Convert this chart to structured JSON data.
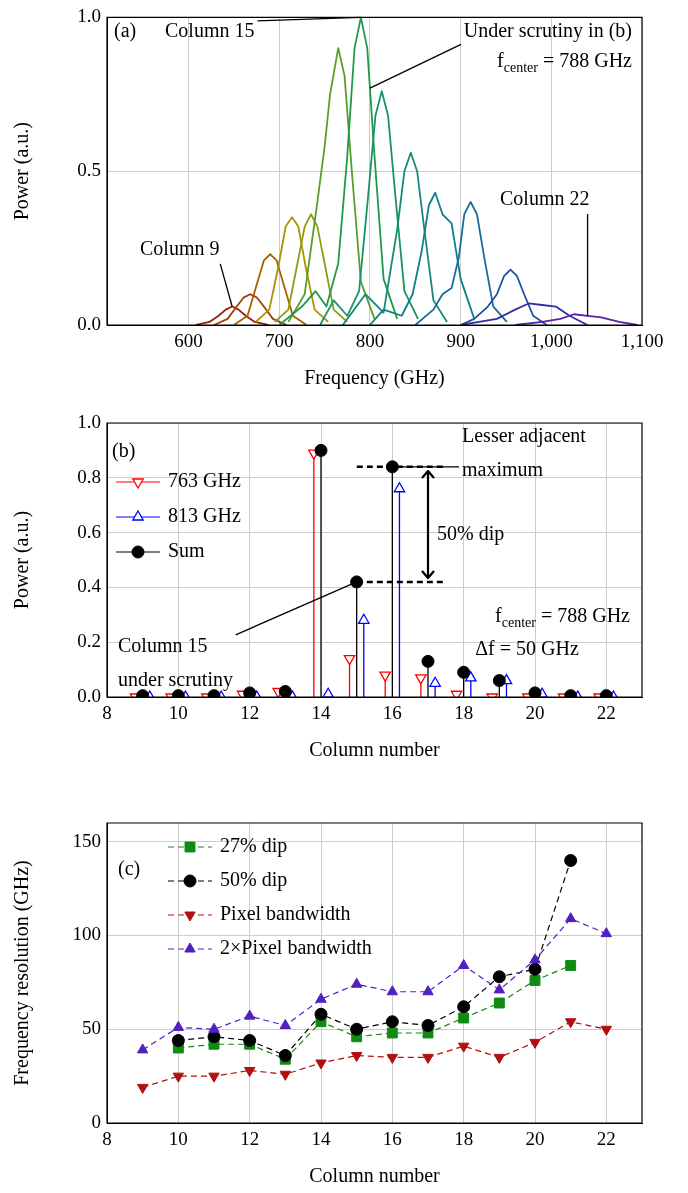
{
  "chart_data": [
    {
      "type": "line",
      "xlabel": "Frequency (GHz)",
      "ylabel": "Power (a.u.)",
      "xlim": [
        510,
        1100
      ],
      "ylim": [
        0,
        1
      ],
      "xticks": [
        600,
        700,
        800,
        900,
        {
          "value": 1000,
          "label": "1,000"
        },
        {
          "value": 1100,
          "label": "1,100"
        }
      ],
      "yticks": [
        {
          "value": 0,
          "label": "0.0"
        },
        {
          "value": 0.5,
          "label": "0.5"
        },
        {
          "value": 1,
          "label": "1.0"
        }
      ],
      "grid": true,
      "marker": "none",
      "legend": false,
      "annotations": [
        "(a)",
        {
          "text": "Column 15",
          "x": 790,
          "y": 1
        },
        {
          "text": "Under scrutiny in (b)",
          "x": 800,
          "y": 0.77
        },
        "f$_{center}$ = 788 GHz",
        {
          "text": "Column 22",
          "x": 1040,
          "y": 0.03
        },
        {
          "text": "Column 9",
          "x": 648,
          "y": 0.06
        }
      ],
      "series": [
        {
          "color": "#a01c0a",
          "x": [
            608,
            623,
            633,
            641,
            648,
            655,
            663,
            673,
            688
          ],
          "values": [
            0,
            0.01,
            0.03,
            0.05,
            0.06,
            0.05,
            0.03,
            0.01,
            0
          ]
        },
        {
          "color": "#a33c05",
          "x": [
            628,
            643,
            653,
            661,
            668,
            675,
            683,
            693,
            708
          ],
          "values": [
            0,
            0.02,
            0.06,
            0.09,
            0.1,
            0.09,
            0.06,
            0.02,
            0
          ]
        },
        {
          "color": "#a86000",
          "x": [
            650,
            665,
            675,
            683,
            690,
            697,
            705,
            715,
            730
          ],
          "values": [
            0,
            0.03,
            0.13,
            0.21,
            0.23,
            0.21,
            0.13,
            0.03,
            0
          ]
        },
        {
          "color": "#a89400",
          "x": [
            674,
            689,
            699,
            707,
            714,
            721,
            729,
            739,
            754
          ],
          "values": [
            0.01,
            0.05,
            0.19,
            0.32,
            0.35,
            0.32,
            0.19,
            0.05,
            0.01
          ]
        },
        {
          "color": "#88a010",
          "x": [
            695,
            710,
            720,
            728,
            735,
            742,
            750,
            760,
            775
          ],
          "values": [
            0.01,
            0.05,
            0.2,
            0.32,
            0.36,
            0.32,
            0.2,
            0.05,
            0.01
          ]
        },
        {
          "color": "#5a9e2a",
          "x": [
            710,
            728,
            742,
            750,
            756,
            765,
            772,
            780,
            790,
            805
          ],
          "values": [
            0.01,
            0.1,
            0.4,
            0.58,
            0.75,
            0.9,
            0.81,
            0.5,
            0.14,
            0.02
          ]
        },
        {
          "color": "#1f9a48",
          "x": [
            700,
            725,
            740,
            752,
            765,
            775,
            783,
            790,
            797,
            805,
            815,
            830
          ],
          "values": [
            0,
            0.06,
            0.11,
            0.06,
            0.2,
            0.55,
            0.9,
            1,
            0.9,
            0.55,
            0.15,
            0.02
          ]
        },
        {
          "color": "#1a9462",
          "x": [
            745,
            760,
            775,
            788,
            798,
            806,
            813,
            820,
            828,
            838,
            853
          ],
          "values": [
            0,
            0.08,
            0.03,
            0.11,
            0.42,
            0.68,
            0.76,
            0.68,
            0.42,
            0.11,
            0.02
          ]
        },
        {
          "color": "#158a78",
          "x": [
            770,
            795,
            815,
            830,
            838,
            845,
            852,
            860,
            870,
            885
          ],
          "values": [
            0,
            0.1,
            0.04,
            0.31,
            0.5,
            0.56,
            0.5,
            0.31,
            0.08,
            0.01
          ]
        },
        {
          "color": "#117e88",
          "x": [
            800,
            815,
            835,
            847,
            857,
            865,
            872,
            880,
            890,
            900,
            915
          ],
          "values": [
            0,
            0.05,
            0.03,
            0.1,
            0.24,
            0.39,
            0.43,
            0.36,
            0.33,
            0.15,
            0.02
          ]
        },
        {
          "color": "#1a6c98",
          "x": [
            850,
            870,
            880,
            890,
            898,
            904,
            911,
            918,
            926,
            936,
            951
          ],
          "values": [
            0,
            0.05,
            0.1,
            0.12,
            0.22,
            0.36,
            0.4,
            0.36,
            0.22,
            0.06,
            0.01
          ]
        },
        {
          "color": "#1f4fa0",
          "x": [
            900,
            915,
            930,
            940,
            948,
            955,
            962,
            970,
            980,
            995
          ],
          "values": [
            0,
            0.02,
            0.06,
            0.1,
            0.16,
            0.18,
            0.16,
            0.1,
            0.03,
            0
          ]
        },
        {
          "color": "#3030a4",
          "x": [
            900,
            940,
            960,
            975,
            990,
            1005,
            1020,
            1040
          ],
          "values": [
            0,
            0.02,
            0.05,
            0.07,
            0.065,
            0.06,
            0.03,
            0
          ]
        },
        {
          "color": "#5a20a8",
          "x": [
            960,
            990,
            1010,
            1025,
            1040,
            1055,
            1075,
            1095
          ],
          "values": [
            0,
            0.01,
            0.02,
            0.035,
            0.03,
            0.025,
            0.01,
            0
          ]
        }
      ]
    },
    {
      "type": "lollipop",
      "xlabel": "Column number",
      "ylabel": "Power (a.u.)",
      "xlim": [
        8,
        23
      ],
      "ylim": [
        0,
        1
      ],
      "xticks": [
        8,
        10,
        12,
        14,
        16,
        18,
        20,
        22
      ],
      "yticks": [
        {
          "value": 0,
          "label": "0.0"
        },
        {
          "value": 0.2,
          "label": "0.2"
        },
        {
          "value": 0.4,
          "label": "0.4"
        },
        {
          "value": 0.6,
          "label": "0.6"
        },
        {
          "value": 0.8,
          "label": "0.8"
        },
        {
          "value": 1,
          "label": "1.0"
        }
      ],
      "grid": true,
      "legend": "top left",
      "annotations": [
        "(b)",
        {
          "text": "Lesser adjacent maximum",
          "x": 16,
          "y": 0.84
        },
        "50% dip",
        {
          "text": "Column 15 under scrutiny",
          "x": 15,
          "y": 0.42
        },
        "f$_{center}$ = 788 GHz",
        "Δf = 50 GHz"
      ],
      "ref_lines": [
        {
          "axis": "y",
          "value": 0.84,
          "color": "#000000",
          "line_style": "dashed"
        },
        {
          "axis": "y",
          "value": 0.42,
          "color": "#000000",
          "line_style": "dashed"
        }
      ],
      "series": [
        {
          "name": "763 GHz",
          "color": "#ff0000",
          "marker": "triangle-down",
          "x": [
            8.8,
            9.8,
            10.8,
            11.8,
            12.8,
            13.8,
            14.8,
            15.8,
            16.8,
            17.8,
            18.8,
            19.8,
            20.8,
            21.8
          ],
          "values": [
            0,
            0,
            0,
            0.01,
            0.02,
            0.89,
            0.14,
            0.08,
            0.07,
            0.01,
            0,
            0,
            0,
            0
          ]
        },
        {
          "name": "813 GHz",
          "color": "#0000ff",
          "marker": "triangle",
          "x": [
            9.2,
            10.2,
            11.2,
            12.2,
            13.2,
            14.2,
            15.2,
            16.2,
            17.2,
            18.2,
            19.2,
            20.2,
            21.2,
            22.2
          ],
          "values": [
            0,
            0,
            0,
            0,
            0,
            0.01,
            0.28,
            0.76,
            0.05,
            0.07,
            0.06,
            0.01,
            0,
            0
          ]
        },
        {
          "name": "Sum",
          "color": "#000000",
          "marker": "circle",
          "x": [
            9,
            10,
            11,
            12,
            13,
            14,
            15,
            16,
            17,
            18,
            19,
            20,
            21,
            22
          ],
          "values": [
            0.005,
            0.005,
            0.005,
            0.015,
            0.02,
            0.9,
            0.42,
            0.84,
            0.13,
            0.09,
            0.06,
            0.015,
            0.005,
            0.005
          ]
        }
      ]
    },
    {
      "type": "line",
      "xlabel": "Column number",
      "ylabel": "Frequency resolution (GHz)",
      "xlim": [
        8,
        23
      ],
      "ylim": [
        0,
        160
      ],
      "xticks": [
        8,
        10,
        12,
        14,
        16,
        18,
        20,
        22
      ],
      "yticks": [
        0,
        50,
        100,
        150
      ],
      "grid": true,
      "legend": "top left",
      "line_style": "dashed",
      "annotations": [
        "(c)"
      ],
      "series": [
        {
          "name": "27% dip",
          "color": "#108a10",
          "marker": "square",
          "x": [
            10,
            11,
            12,
            13,
            14,
            15,
            16,
            17,
            18,
            19,
            20,
            21
          ],
          "values": [
            40,
            42,
            42,
            34,
            54,
            46,
            48,
            48,
            56,
            64,
            76,
            84
          ]
        },
        {
          "name": "50% dip",
          "color": "#000000",
          "marker": "circle",
          "x": [
            10,
            11,
            12,
            13,
            14,
            15,
            16,
            17,
            18,
            19,
            20,
            21
          ],
          "values": [
            44,
            46,
            44,
            36,
            58,
            50,
            54,
            52,
            62,
            78,
            82,
            140
          ]
        },
        {
          "name": "Pixel bandwidth",
          "color": "#b01010",
          "marker": "triangle-down",
          "x": [
            9,
            10,
            11,
            12,
            13,
            14,
            15,
            16,
            17,
            18,
            19,
            20,
            21,
            22
          ],
          "values": [
            19,
            25,
            25,
            28,
            26,
            32,
            36,
            35,
            35,
            41,
            35,
            43,
            54,
            50
          ]
        },
        {
          "name": "2×Pixel bandwidth",
          "color": "#5020c0",
          "marker": "triangle",
          "x": [
            9,
            10,
            11,
            12,
            13,
            14,
            15,
            16,
            17,
            18,
            19,
            20,
            21,
            22
          ],
          "values": [
            39,
            51,
            50,
            57,
            52,
            66,
            74,
            70,
            70,
            84,
            71,
            87,
            109,
            101
          ]
        }
      ]
    }
  ]
}
